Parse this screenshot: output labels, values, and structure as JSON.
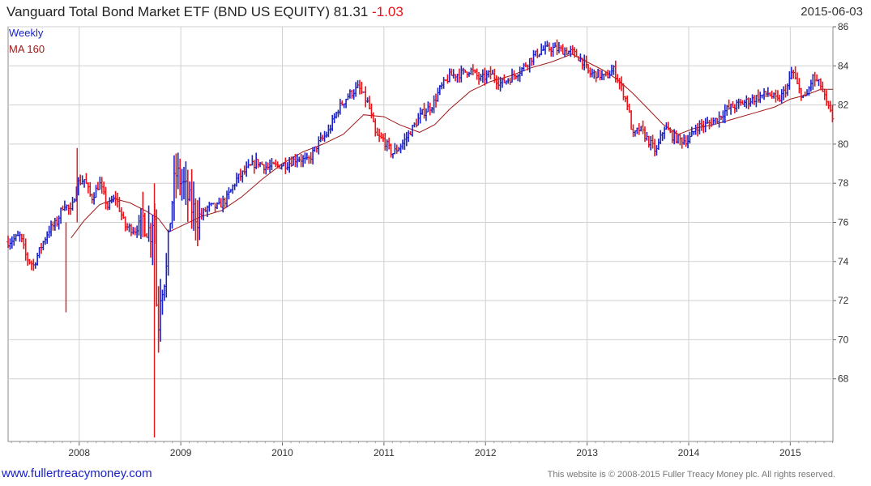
{
  "header": {
    "title": "Vanguard Total Bond Market ETF (BND US EQUITY)",
    "last": "81.31",
    "change": "-1.03",
    "date": "2015-06-03"
  },
  "footer": {
    "site": "www.fullertreacymoney.com",
    "copyright": "This website is © 2008-2015 Fuller Treacy Money plc. All rights reserved."
  },
  "chart_data": {
    "type": "ohlc",
    "title": "Vanguard Total Bond Market ETF (BND US EQUITY) 81.31 -1.03",
    "frequency": "Weekly",
    "legend": [
      "Weekly",
      "MA 160"
    ],
    "legend_position": "top-left",
    "grid": true,
    "xlim": [
      2007.3,
      2015.42
    ],
    "ylim": [
      64.8,
      86
    ],
    "x_ticks": [
      2008,
      2009,
      2010,
      2011,
      2012,
      2013,
      2014,
      2015
    ],
    "y_ticks": [
      68,
      70,
      72,
      74,
      76,
      78,
      80,
      82,
      84,
      86
    ],
    "colors": {
      "up": "#1a22c8",
      "down": "#e8141a",
      "ma": "#a01818",
      "grid": "#d0d0d0"
    },
    "close_series": {
      "name": "Weekly",
      "points": [
        [
          2007.3,
          75.0
        ],
        [
          2007.42,
          75.3
        ],
        [
          2007.48,
          74.2
        ],
        [
          2007.55,
          73.8
        ],
        [
          2007.62,
          74.7
        ],
        [
          2007.7,
          75.6
        ],
        [
          2007.78,
          76.0
        ],
        [
          2007.85,
          77.0
        ],
        [
          2007.92,
          76.5
        ],
        [
          2007.98,
          78.0
        ],
        [
          2008.05,
          78.2
        ],
        [
          2008.12,
          77.2
        ],
        [
          2008.2,
          78.0
        ],
        [
          2008.28,
          76.8
        ],
        [
          2008.36,
          77.3
        ],
        [
          2008.45,
          75.8
        ],
        [
          2008.55,
          75.6
        ],
        [
          2008.63,
          76.2
        ],
        [
          2008.7,
          75.4
        ],
        [
          2008.74,
          76.8
        ],
        [
          2008.77,
          70.0
        ],
        [
          2008.8,
          72.5
        ],
        [
          2008.86,
          73.6
        ],
        [
          2008.9,
          76.5
        ],
        [
          2008.95,
          78.5
        ],
        [
          2009.02,
          78.0
        ],
        [
          2009.1,
          76.8
        ],
        [
          2009.18,
          76.2
        ],
        [
          2009.27,
          76.8
        ],
        [
          2009.37,
          76.8
        ],
        [
          2009.45,
          77.2
        ],
        [
          2009.55,
          78.2
        ],
        [
          2009.65,
          78.7
        ],
        [
          2009.75,
          79.1
        ],
        [
          2009.85,
          78.8
        ],
        [
          2009.95,
          78.9
        ],
        [
          2010.05,
          79.0
        ],
        [
          2010.15,
          79.3
        ],
        [
          2010.25,
          79.1
        ],
        [
          2010.35,
          80.0
        ],
        [
          2010.45,
          80.6
        ],
        [
          2010.55,
          81.8
        ],
        [
          2010.65,
          82.5
        ],
        [
          2010.75,
          82.9
        ],
        [
          2010.85,
          82.0
        ],
        [
          2010.92,
          80.4
        ],
        [
          2011.0,
          80.2
        ],
        [
          2011.08,
          79.5
        ],
        [
          2011.18,
          80.0
        ],
        [
          2011.28,
          80.8
        ],
        [
          2011.38,
          81.6
        ],
        [
          2011.48,
          82.0
        ],
        [
          2011.55,
          82.8
        ],
        [
          2011.65,
          83.5
        ],
        [
          2011.75,
          83.6
        ],
        [
          2011.85,
          83.8
        ],
        [
          2011.95,
          83.3
        ],
        [
          2012.05,
          83.6
        ],
        [
          2012.15,
          83.1
        ],
        [
          2012.25,
          83.4
        ],
        [
          2012.35,
          83.8
        ],
        [
          2012.45,
          84.4
        ],
        [
          2012.55,
          84.8
        ],
        [
          2012.65,
          84.9
        ],
        [
          2012.75,
          84.8
        ],
        [
          2012.85,
          84.7
        ],
        [
          2012.95,
          84.3
        ],
        [
          2013.02,
          83.6
        ],
        [
          2013.1,
          83.6
        ],
        [
          2013.18,
          83.4
        ],
        [
          2013.26,
          83.8
        ],
        [
          2013.33,
          83.0
        ],
        [
          2013.4,
          82.0
        ],
        [
          2013.45,
          80.4
        ],
        [
          2013.52,
          80.8
        ],
        [
          2013.6,
          80.2
        ],
        [
          2013.68,
          79.6
        ],
        [
          2013.76,
          80.9
        ],
        [
          2013.84,
          80.4
        ],
        [
          2013.92,
          80.2
        ],
        [
          2014.0,
          80.2
        ],
        [
          2014.08,
          80.9
        ],
        [
          2014.18,
          81.0
        ],
        [
          2014.28,
          81.3
        ],
        [
          2014.38,
          81.8
        ],
        [
          2014.48,
          82.0
        ],
        [
          2014.58,
          82.2
        ],
        [
          2014.68,
          82.4
        ],
        [
          2014.78,
          82.6
        ],
        [
          2014.88,
          82.2
        ],
        [
          2014.98,
          83.0
        ],
        [
          2015.02,
          83.8
        ],
        [
          2015.08,
          82.8
        ],
        [
          2015.15,
          82.3
        ],
        [
          2015.22,
          83.4
        ],
        [
          2015.3,
          83.0
        ],
        [
          2015.36,
          82.0
        ],
        [
          2015.42,
          81.3
        ]
      ]
    },
    "ma_series": {
      "name": "MA 160",
      "points": [
        [
          2007.92,
          75.2
        ],
        [
          2008.05,
          76.1
        ],
        [
          2008.2,
          76.9
        ],
        [
          2008.35,
          77.2
        ],
        [
          2008.5,
          77.0
        ],
        [
          2008.65,
          76.6
        ],
        [
          2008.78,
          76.2
        ],
        [
          2008.88,
          75.5
        ],
        [
          2009.0,
          75.8
        ],
        [
          2009.2,
          76.3
        ],
        [
          2009.4,
          76.6
        ],
        [
          2009.6,
          77.3
        ],
        [
          2009.8,
          78.2
        ],
        [
          2010.0,
          79.0
        ],
        [
          2010.2,
          79.6
        ],
        [
          2010.4,
          80.0
        ],
        [
          2010.6,
          80.5
        ],
        [
          2010.8,
          81.5
        ],
        [
          2011.0,
          81.4
        ],
        [
          2011.15,
          81.0
        ],
        [
          2011.35,
          80.6
        ],
        [
          2011.5,
          81.0
        ],
        [
          2011.65,
          81.8
        ],
        [
          2011.85,
          82.7
        ],
        [
          2012.05,
          83.2
        ],
        [
          2012.25,
          83.5
        ],
        [
          2012.45,
          83.9
        ],
        [
          2012.65,
          84.2
        ],
        [
          2012.85,
          84.6
        ],
        [
          2013.0,
          84.2
        ],
        [
          2013.15,
          83.8
        ],
        [
          2013.3,
          83.3
        ],
        [
          2013.45,
          82.6
        ],
        [
          2013.6,
          81.8
        ],
        [
          2013.75,
          81.0
        ],
        [
          2013.9,
          80.5
        ],
        [
          2014.05,
          80.8
        ],
        [
          2014.25,
          81.0
        ],
        [
          2014.45,
          81.3
        ],
        [
          2014.65,
          81.6
        ],
        [
          2014.85,
          81.9
        ],
        [
          2015.0,
          82.3
        ],
        [
          2015.15,
          82.5
        ],
        [
          2015.3,
          82.8
        ],
        [
          2015.42,
          82.8
        ]
      ]
    },
    "spikes": [
      {
        "x": 2007.87,
        "low": 71.4,
        "high": 76.0
      },
      {
        "x": 2008.74,
        "low": 65.0,
        "high": 78.0
      },
      {
        "x": 2007.98,
        "low": 76.0,
        "high": 79.8
      }
    ]
  }
}
